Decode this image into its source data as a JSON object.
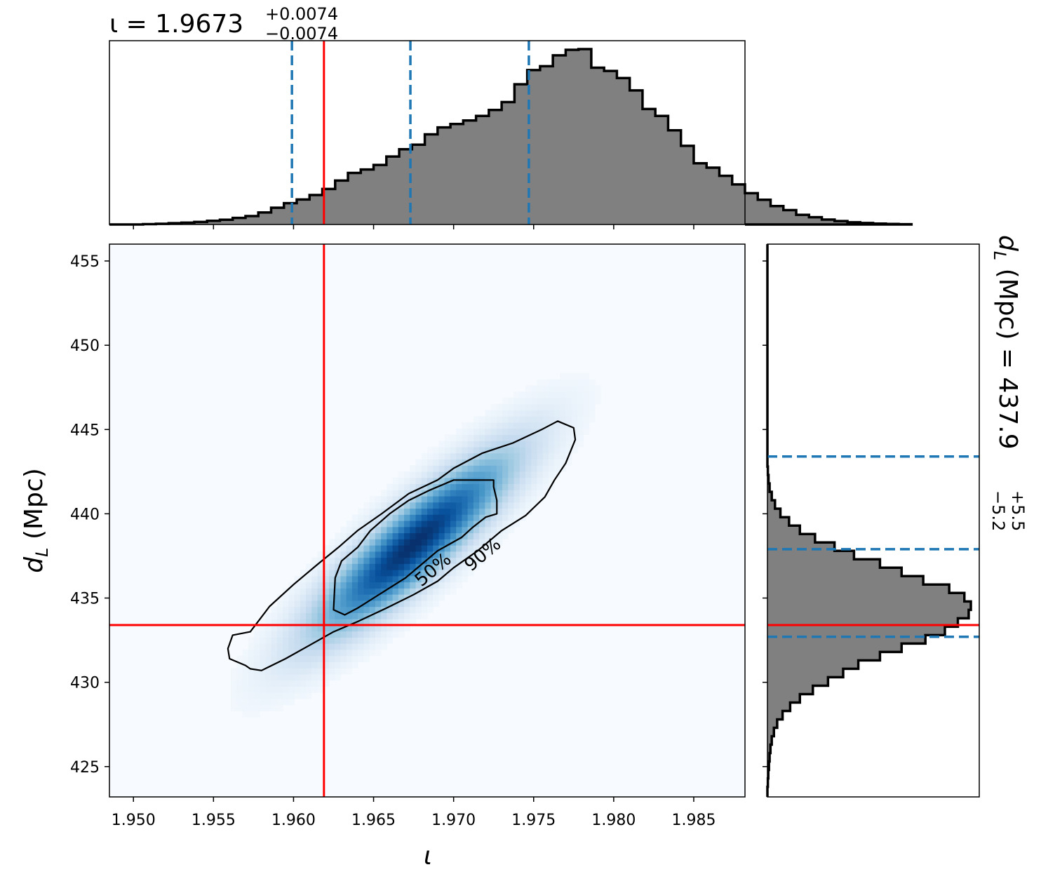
{
  "chart_data": {
    "type": "corner",
    "parameters": [
      {
        "key": "iota",
        "symbol": "ι",
        "label": "ι"
      },
      {
        "key": "dL",
        "symbol": "d",
        "subscript": "L",
        "unit": "(Mpc)"
      }
    ],
    "summaries": {
      "iota": {
        "prefix": "ι = ",
        "median": "1.9673",
        "plus": "+0.0074",
        "minus": "−0.0074"
      },
      "dL": {
        "prefix": "(Mpc) = ",
        "median": "437.9",
        "plus": "+5.5",
        "minus": "−5.2"
      }
    },
    "truth": {
      "iota": 1.9619,
      "dL": 433.4
    },
    "colors": {
      "truth": "#ff0000",
      "quantile": "#1f77b4",
      "hist_fill": "#808080",
      "hist_edge": "#000000",
      "density_cmap": "Blues"
    },
    "main_panel": {
      "type": "2d-density",
      "xlim": [
        1.9485,
        1.9882
      ],
      "ylim": [
        423.2,
        456.0
      ],
      "xticks": [
        1.95,
        1.955,
        1.96,
        1.965,
        1.97,
        1.975,
        1.98,
        1.985
      ],
      "xtick_labels": [
        "1.950",
        "1.955",
        "1.960",
        "1.965",
        "1.970",
        "1.975",
        "1.980",
        "1.985"
      ],
      "yticks": [
        425,
        430,
        435,
        440,
        445,
        450,
        455
      ],
      "ytick_labels": [
        "425",
        "430",
        "435",
        "440",
        "445",
        "450",
        "455"
      ],
      "xlabel": "ι",
      "ylabel": "d",
      "ylabel_sub": "L",
      "ylabel_unit": "(Mpc)",
      "density": {
        "center": [
          1.9675,
          438.2
        ],
        "sd_x": 0.004,
        "sd_y": 3.5,
        "corr": 0.88,
        "grid": [
          110,
          90
        ]
      },
      "contours": [
        {
          "label": "50%",
          "label_at": [
            1.9687,
            436.7
          ],
          "points": [
            [
              1.9626,
              436.2
            ],
            [
              1.963,
              437.2
            ],
            [
              1.964,
              438.0
            ],
            [
              1.9648,
              439.0
            ],
            [
              1.966,
              440.0
            ],
            [
              1.9672,
              440.8
            ],
            [
              1.9685,
              441.4
            ],
            [
              1.97,
              442.0
            ],
            [
              1.9725,
              442.0
            ],
            [
              1.9725,
              441.6
            ],
            [
              1.9727,
              440.8
            ],
            [
              1.9727,
              440.0
            ],
            [
              1.972,
              439.8
            ],
            [
              1.9712,
              439.2
            ],
            [
              1.9705,
              438.6
            ],
            [
              1.969,
              437.8
            ],
            [
              1.968,
              437.0
            ],
            [
              1.967,
              436.2
            ],
            [
              1.966,
              435.6
            ],
            [
              1.965,
              435.0
            ],
            [
              1.964,
              434.4
            ],
            [
              1.9632,
              434.0
            ],
            [
              1.9625,
              434.3
            ]
          ]
        },
        {
          "label": "90%",
          "label_at": [
            1.9718,
            437.6
          ],
          "points": [
            [
              1.9573,
              433.0
            ],
            [
              1.9585,
              434.5
            ],
            [
              1.96,
              435.8
            ],
            [
              1.9615,
              437.0
            ],
            [
              1.9628,
              438.0
            ],
            [
              1.964,
              439.0
            ],
            [
              1.9655,
              440.0
            ],
            [
              1.9672,
              441.2
            ],
            [
              1.969,
              442.0
            ],
            [
              1.97,
              442.7
            ],
            [
              1.9718,
              443.6
            ],
            [
              1.9737,
              444.2
            ],
            [
              1.9755,
              445.0
            ],
            [
              1.9765,
              445.5
            ],
            [
              1.9775,
              445.1
            ],
            [
              1.9776,
              444.4
            ],
            [
              1.977,
              443.0
            ],
            [
              1.9763,
              442.0
            ],
            [
              1.9757,
              441.0
            ],
            [
              1.9745,
              439.9
            ],
            [
              1.973,
              439.0
            ],
            [
              1.9715,
              437.8
            ],
            [
              1.97,
              436.8
            ],
            [
              1.969,
              436.0
            ],
            [
              1.9675,
              435.2
            ],
            [
              1.9658,
              434.4
            ],
            [
              1.964,
              433.6
            ],
            [
              1.9625,
              433.0
            ],
            [
              1.961,
              432.2
            ],
            [
              1.9595,
              431.4
            ],
            [
              1.958,
              430.7
            ],
            [
              1.9573,
              430.8
            ],
            [
              1.957,
              431.0
            ],
            [
              1.956,
              431.4
            ],
            [
              1.9559,
              432.0
            ],
            [
              1.9562,
              432.8
            ]
          ]
        }
      ]
    },
    "top_panel": {
      "type": "histogram",
      "parameter": "iota",
      "bin_start": 1.9506,
      "bin_width": 0.0008,
      "counts": [
        0.2,
        0.4,
        0.7,
        1.0,
        1.4,
        2.0,
        2.6,
        3.6,
        4.6,
        6.6,
        9.2,
        11.7,
        13.7,
        16.2,
        19.5,
        24.1,
        28.3,
        30.2,
        32.7,
        37.3,
        41.3,
        43.8,
        49.5,
        53.3,
        55.2,
        57.1,
        59.6,
        62.9,
        67.2,
        77.0,
        84.8,
        86.9,
        92.9,
        95.9,
        96.3,
        86.1,
        84.3,
        80.4,
        73.6,
        63.4,
        59.6,
        51.7,
        43.2,
        33.6,
        31.2,
        26.7,
        22.0,
        17.2,
        13.6,
        10.1,
        7.9,
        5.3,
        4.0,
        2.7,
        1.9,
        1.2,
        0.8,
        0.5,
        0.3,
        0.15
      ],
      "quantile_lines": [
        1.9599,
        1.9673,
        1.9747
      ],
      "xticks": [
        1.95,
        1.955,
        1.96,
        1.965,
        1.97,
        1.975,
        1.98,
        1.985
      ]
    },
    "right_panel": {
      "type": "histogram",
      "orientation": "horizontal",
      "parameter": "dL",
      "bin_start": 423.8,
      "bin_width": 0.5,
      "counts": [
        0.2,
        0.4,
        0.7,
        1.0,
        1.4,
        2.0,
        3.0,
        4.5,
        7.0,
        10.5,
        15.0,
        21.0,
        28.0,
        35.0,
        42.0,
        52.0,
        62.0,
        73.0,
        82.0,
        88.0,
        93.0,
        94.0,
        91.0,
        84.0,
        72.0,
        62.0,
        52.0,
        40.0,
        31.0,
        22.0,
        15.0,
        10.0,
        6.0,
        3.5,
        2.0,
        1.0,
        0.5,
        0.2
      ],
      "quantile_lines": [
        432.7,
        437.9,
        443.4
      ],
      "yticks": [
        425,
        430,
        435,
        440,
        445,
        450,
        455
      ]
    }
  }
}
